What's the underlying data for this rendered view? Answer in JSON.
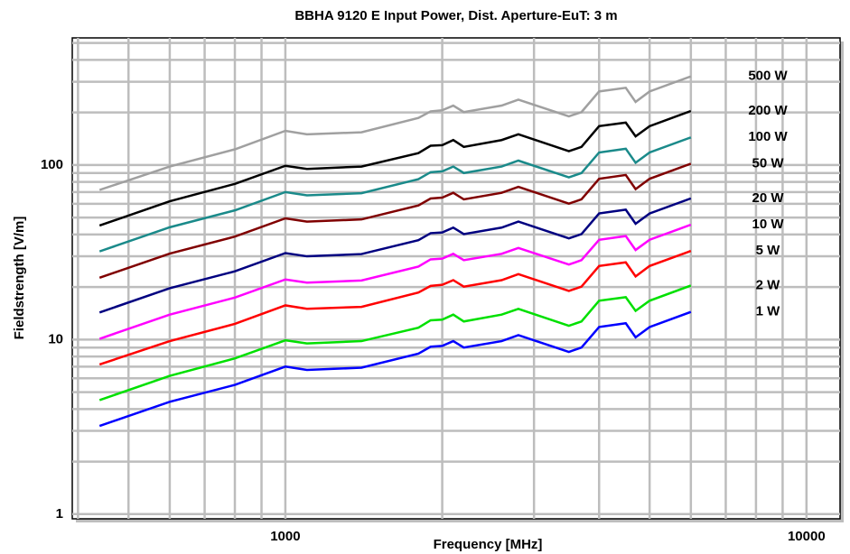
{
  "chart_data": {
    "type": "line",
    "title": "BBHA 9120 E  Input Power, Dist. Aperture-EuT: 3 m",
    "x_label": "Frequency [MHz]",
    "y_label": "Fieldstrength [V/m]",
    "log_x": true,
    "log_y": true,
    "grid": true,
    "xlim": [
      390,
      11600
    ],
    "ylim": [
      0.94,
      535
    ],
    "xticks": [
      1000,
      10000
    ],
    "yticks": [
      1,
      10,
      100
    ],
    "xminor": [
      400,
      500,
      600,
      700,
      800,
      900,
      2000,
      3000,
      4000,
      5000,
      6000,
      7000,
      8000,
      9000
    ],
    "yminor": [
      2,
      3,
      4,
      5,
      6,
      7,
      8,
      9,
      20,
      30,
      40,
      50,
      60,
      70,
      80,
      90,
      200,
      300,
      400,
      500
    ],
    "x": [
      440,
      600,
      800,
      1000,
      1100,
      1400,
      1800,
      1900,
      2000,
      2100,
      2200,
      2600,
      2800,
      3500,
      3700,
      4000,
      4500,
      4700,
      5000,
      6000
    ],
    "series": [
      {
        "name": "500 W",
        "color": "#a0a0a0",
        "values": [
          72,
          98,
          123,
          157,
          150,
          154,
          186,
          203,
          206,
          219,
          201,
          219,
          237,
          190,
          201,
          264,
          277,
          230,
          264,
          322
        ]
      },
      {
        "name": "200 W",
        "color": "#000000",
        "values": [
          45,
          62,
          78,
          99,
          95,
          98,
          117,
          129,
          130,
          139,
          127,
          139,
          150,
          120,
          127,
          167,
          175,
          146,
          167,
          204
        ]
      },
      {
        "name": "100 W",
        "color": "#1a8a8a",
        "values": [
          32,
          44,
          55,
          70,
          67,
          69,
          83,
          91,
          92,
          98,
          90,
          98,
          106,
          85,
          90,
          118,
          124,
          103,
          118,
          144
        ]
      },
      {
        "name": "50 W",
        "color": "#800000",
        "values": [
          22.6,
          31.1,
          38.9,
          49.5,
          47.4,
          48.8,
          58.7,
          64.3,
          65.1,
          69.3,
          63.6,
          69.3,
          75.0,
          60.1,
          63.6,
          83.4,
          87.7,
          72.8,
          83.4,
          101.8
        ]
      },
      {
        "name": "20 W",
        "color": "#000080",
        "values": [
          14.3,
          19.7,
          24.6,
          31.3,
          30.0,
          30.9,
          37.1,
          40.7,
          41.1,
          43.8,
          40.2,
          43.8,
          47.4,
          38.0,
          40.2,
          52.8,
          55.5,
          46.1,
          52.8,
          64.4
        ]
      },
      {
        "name": "10 W",
        "color": "#ff00ff",
        "values": [
          10.1,
          13.9,
          17.4,
          22.1,
          21.2,
          21.8,
          26.2,
          28.8,
          29.1,
          31.0,
          28.5,
          31.0,
          33.5,
          26.9,
          28.5,
          37.3,
          39.2,
          32.6,
          37.3,
          45.5
        ]
      },
      {
        "name": "5 W",
        "color": "#ff0000",
        "values": [
          7.2,
          9.8,
          12.3,
          15.7,
          15.0,
          15.4,
          18.6,
          20.3,
          20.6,
          21.9,
          20.1,
          21.9,
          23.7,
          19.0,
          20.1,
          26.4,
          27.7,
          23.0,
          26.4,
          32.2
        ]
      },
      {
        "name": "2 W",
        "color": "#00e000",
        "values": [
          4.5,
          6.2,
          7.8,
          9.9,
          9.5,
          9.8,
          11.7,
          12.9,
          13.0,
          13.9,
          12.7,
          13.9,
          15.0,
          12.0,
          12.7,
          16.7,
          17.5,
          14.6,
          16.7,
          20.4
        ]
      },
      {
        "name": "1 W",
        "color": "#0000ff",
        "values": [
          3.2,
          4.4,
          5.5,
          7.0,
          6.7,
          6.9,
          8.3,
          9.1,
          9.2,
          9.8,
          9.0,
          9.8,
          10.6,
          8.5,
          9.0,
          11.8,
          12.4,
          10.3,
          11.8,
          14.4
        ]
      }
    ]
  }
}
